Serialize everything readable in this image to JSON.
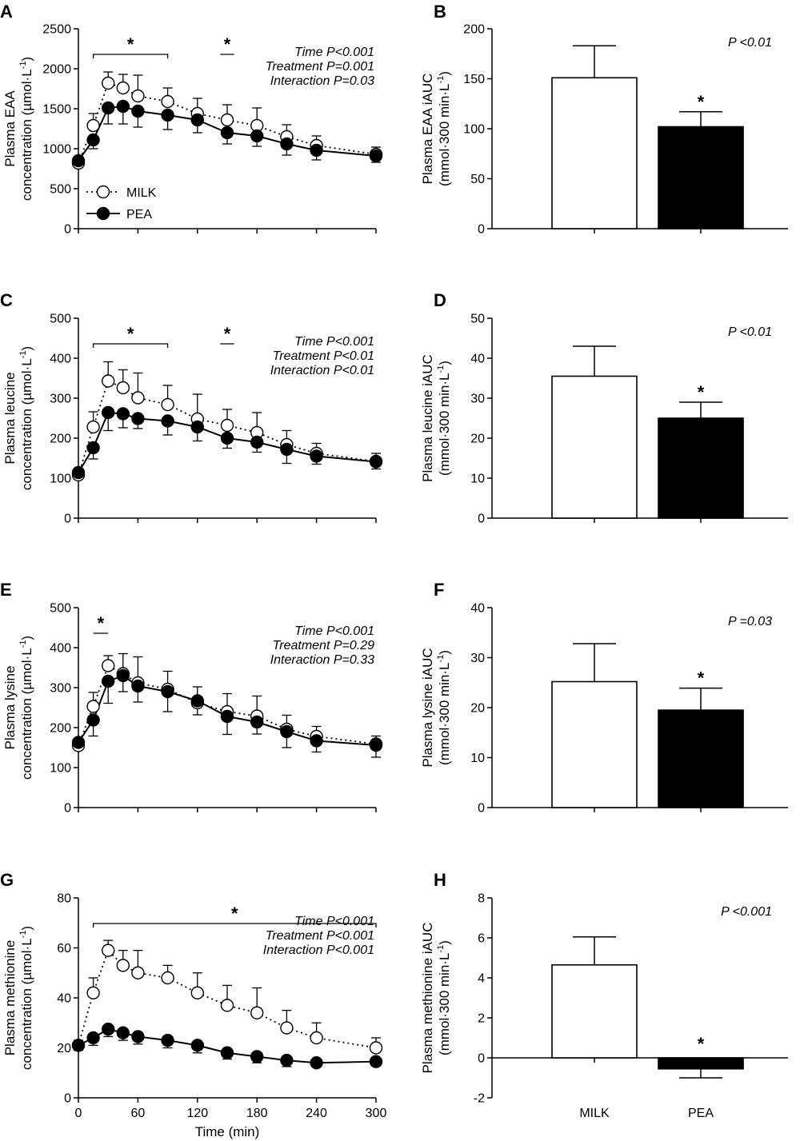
{
  "chart_data": [
    {
      "panel": "A",
      "type": "line",
      "ylabel": [
        "Plasma EAA",
        "concentration (µmol·L",
        "-1",
        ")"
      ],
      "ylim": [
        0,
        2500
      ],
      "yticks": [
        0,
        500,
        1000,
        1500,
        2000,
        2500
      ],
      "x": [
        0,
        15,
        30,
        45,
        60,
        90,
        120,
        150,
        180,
        210,
        240,
        300
      ],
      "series": [
        {
          "name": "MILK",
          "values": [
            820,
            1290,
            1820,
            1760,
            1660,
            1590,
            1440,
            1360,
            1290,
            1150,
            1040,
            930
          ],
          "sd": [
            60,
            150,
            140,
            170,
            260,
            170,
            190,
            190,
            220,
            150,
            120,
            90
          ]
        },
        {
          "name": "PEA",
          "values": [
            850,
            1110,
            1510,
            1530,
            1470,
            1420,
            1360,
            1200,
            1160,
            1060,
            980,
            910
          ],
          "sd": [
            60,
            110,
            200,
            220,
            200,
            180,
            160,
            140,
            130,
            140,
            120,
            80
          ]
        }
      ],
      "stats": [
        "Time P<0.001",
        "Treatment P=0.001",
        "Interaction P=0.03"
      ],
      "brackets": [
        {
          "x1": 15,
          "x2": 90,
          "star": "*"
        },
        {
          "x1": 143,
          "x2": 157,
          "star": "*"
        }
      ],
      "legend": [
        {
          "label": "MILK"
        },
        {
          "label": "PEA"
        }
      ]
    },
    {
      "panel": "B",
      "type": "bar",
      "ylabel": [
        "Plasma EAA iAUC",
        "(mmol·300 min·L",
        "-1",
        ")"
      ],
      "ylim": [
        0,
        200
      ],
      "yticks": [
        0,
        50,
        100,
        150,
        200
      ],
      "categories": [
        "MILK",
        "PEA"
      ],
      "values": [
        151,
        102
      ],
      "sd": [
        32,
        15
      ],
      "stars": [
        "",
        "*"
      ],
      "stats": "P <0.01"
    },
    {
      "panel": "C",
      "type": "line",
      "ylabel": [
        "Plasma leucine",
        "concentration (µmol·L",
        "-1",
        ")"
      ],
      "ylim": [
        0,
        500
      ],
      "yticks": [
        0,
        100,
        200,
        300,
        400,
        500
      ],
      "x": [
        0,
        15,
        30,
        45,
        60,
        90,
        120,
        150,
        180,
        210,
        240,
        300
      ],
      "series": [
        {
          "name": "MILK",
          "values": [
            108,
            228,
            343,
            326,
            301,
            284,
            248,
            232,
            214,
            184,
            162,
            142
          ],
          "sd": [
            10,
            38,
            48,
            45,
            62,
            48,
            62,
            40,
            50,
            35,
            25,
            20
          ]
        },
        {
          "name": "PEA",
          "values": [
            114,
            176,
            264,
            261,
            249,
            243,
            228,
            200,
            190,
            172,
            155,
            141
          ],
          "sd": [
            10,
            28,
            45,
            35,
            25,
            35,
            35,
            25,
            25,
            35,
            20,
            18
          ]
        }
      ],
      "stats": [
        "Time P<0.001",
        "Treatment P<0.01",
        "Interaction P<0.01"
      ],
      "brackets": [
        {
          "x1": 15,
          "x2": 90,
          "star": "*"
        },
        {
          "x1": 143,
          "x2": 157,
          "star": "*"
        }
      ]
    },
    {
      "panel": "D",
      "type": "bar",
      "ylabel": [
        "Plasma leucine iAUC",
        "(mmol·300 min·L",
        "-1",
        ")"
      ],
      "ylim": [
        0,
        50
      ],
      "yticks": [
        0,
        10,
        20,
        30,
        40,
        50
      ],
      "categories": [
        "MILK",
        "PEA"
      ],
      "values": [
        35.5,
        25
      ],
      "sd": [
        7.5,
        4
      ],
      "stars": [
        "",
        "*"
      ],
      "stats": "P <0.01"
    },
    {
      "panel": "E",
      "type": "line",
      "ylabel": [
        "Plasma lysine",
        "concentration (µmol·L",
        "-1",
        ")"
      ],
      "ylim": [
        0,
        500
      ],
      "yticks": [
        0,
        100,
        200,
        300,
        400,
        500
      ],
      "x": [
        0,
        15,
        30,
        45,
        60,
        90,
        120,
        150,
        180,
        210,
        240,
        300
      ],
      "series": [
        {
          "name": "MILK",
          "values": [
            155,
            253,
            355,
            335,
            312,
            296,
            262,
            240,
            229,
            196,
            178,
            159
          ],
          "sd": [
            15,
            35,
            25,
            50,
            65,
            45,
            40,
            45,
            50,
            35,
            25,
            20
          ]
        },
        {
          "name": "PEA",
          "values": [
            163,
            219,
            316,
            330,
            304,
            290,
            267,
            228,
            214,
            190,
            167,
            156
          ],
          "sd": [
            18,
            40,
            55,
            40,
            40,
            50,
            35,
            45,
            30,
            40,
            28,
            30
          ]
        }
      ],
      "stats": [
        "Time P<0.001",
        "Treatment P=0.29",
        "Interaction P=0.33"
      ],
      "brackets": [
        {
          "x1": 15,
          "x2": 30,
          "star": "*"
        }
      ]
    },
    {
      "panel": "F",
      "type": "bar",
      "ylabel": [
        "Plasma lysine iAUC",
        "(mmol·300 min·L",
        "-1",
        ")"
      ],
      "ylim": [
        0,
        40
      ],
      "yticks": [
        0,
        10,
        20,
        30,
        40
      ],
      "categories": [
        "MILK",
        "PEA"
      ],
      "values": [
        25.2,
        19.5
      ],
      "sd": [
        7.6,
        4.4
      ],
      "stars": [
        "",
        "*"
      ],
      "stats": "P =0.03"
    },
    {
      "panel": "G",
      "type": "line",
      "xlabel": "Time (min)",
      "ylabel": [
        "Plasma methionine",
        "concentration (µmol·L",
        "-1",
        ")"
      ],
      "ylim": [
        0,
        80
      ],
      "yticks": [
        0,
        20,
        40,
        60,
        80
      ],
      "xticks": [
        0,
        60,
        120,
        180,
        240,
        300
      ],
      "x": [
        0,
        15,
        30,
        45,
        60,
        90,
        120,
        150,
        180,
        210,
        240,
        300
      ],
      "series": [
        {
          "name": "MILK",
          "values": [
            21,
            42,
            59,
            53,
            50,
            48,
            42,
            37,
            34,
            28,
            24,
            20
          ],
          "sd": [
            2,
            6,
            4,
            6,
            9,
            5,
            8,
            8,
            10,
            7,
            6,
            4
          ]
        },
        {
          "name": "PEA",
          "values": [
            21,
            24,
            27.5,
            26,
            24.5,
            23,
            21,
            18,
            16.5,
            15,
            14,
            14.5
          ],
          "sd": [
            2,
            3,
            3,
            3,
            3,
            3,
            3,
            2.5,
            2.5,
            2.5,
            1.5,
            1.5
          ]
        }
      ],
      "stats": [
        "Time P<0.001",
        "Treatment P<0.001",
        "Interaction P<0.001"
      ],
      "brackets": [
        {
          "x1": 15,
          "x2": 300,
          "star": "*"
        }
      ]
    },
    {
      "panel": "H",
      "type": "bar",
      "ylabel": [
        "Plasma methionine iAUC",
        "(mmol·300 min·L",
        "-1",
        ")"
      ],
      "ylim": [
        -2,
        8
      ],
      "yticks": [
        -2,
        0,
        2,
        4,
        6,
        8
      ],
      "categories": [
        "MILK",
        "PEA"
      ],
      "values": [
        4.65,
        -0.55
      ],
      "sd": [
        1.4,
        0.45
      ],
      "stars": [
        "",
        "*"
      ],
      "stats": "P <0.001",
      "xlabels": [
        "MILK",
        "PEA"
      ]
    }
  ]
}
